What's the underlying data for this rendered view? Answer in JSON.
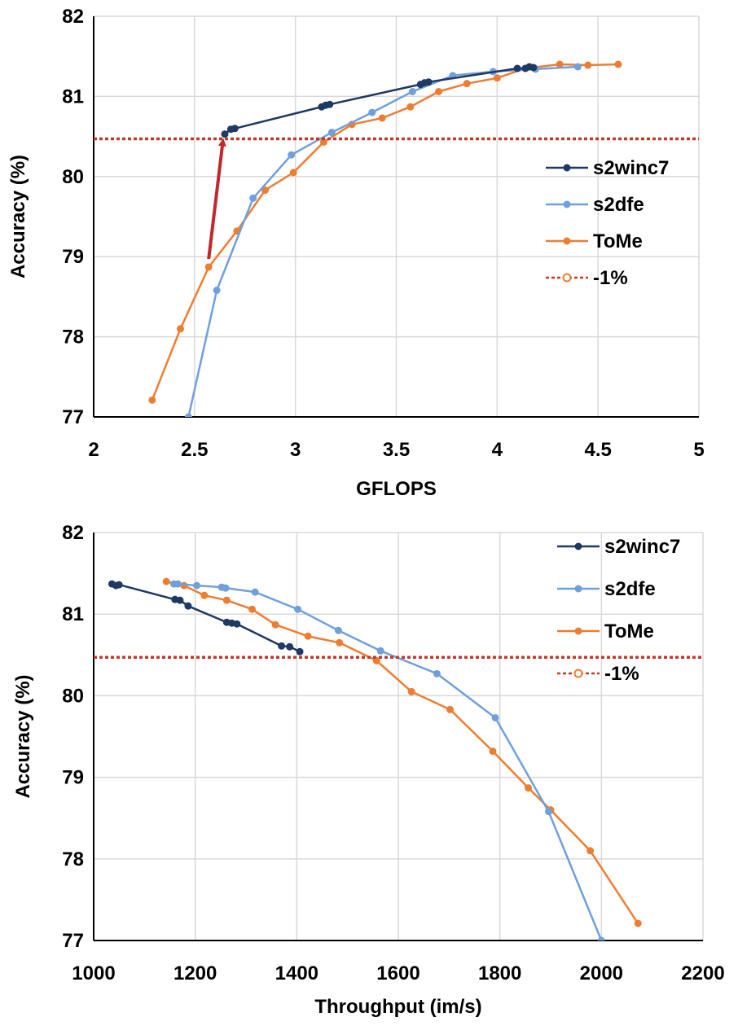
{
  "chart_data": [
    {
      "type": "line",
      "xlabel": "GFLOPS",
      "ylabel": "Accuracy (%)",
      "xlim": [
        2,
        5
      ],
      "ylim": [
        77,
        82
      ],
      "x_ticks": [
        "2",
        "2.5",
        "3",
        "3.5",
        "4",
        "4.5",
        "5"
      ],
      "y_ticks": [
        "77",
        "78",
        "79",
        "80",
        "81",
        "82"
      ],
      "grid": true,
      "legend_position": "right",
      "series": [
        {
          "name": "s2winc7",
          "color": "#1f3864",
          "kind": "line-marker",
          "x": [
            2.65,
            2.68,
            2.7,
            3.13,
            3.15,
            3.17,
            3.62,
            3.64,
            3.66,
            4.1,
            4.14,
            4.16,
            4.18
          ],
          "y": [
            80.53,
            80.59,
            80.6,
            80.87,
            80.89,
            80.9,
            81.15,
            81.17,
            81.18,
            81.35,
            81.35,
            81.37,
            81.36
          ]
        },
        {
          "name": "s2dfe",
          "color": "#6fa0dc",
          "kind": "line-marker",
          "x": [
            2.47,
            2.61,
            2.79,
            2.98,
            3.18,
            3.38,
            3.58,
            3.78,
            3.98,
            4.19,
            4.4
          ],
          "y": [
            77.0,
            78.58,
            79.73,
            80.27,
            80.55,
            80.8,
            81.06,
            81.26,
            81.31,
            81.34,
            81.37
          ]
        },
        {
          "name": "ToMe",
          "color": "#ed7d31",
          "kind": "line-marker",
          "x": [
            2.29,
            2.43,
            2.57,
            2.71,
            2.85,
            2.99,
            3.14,
            3.28,
            3.43,
            3.57,
            3.71,
            3.85,
            4.0,
            4.14,
            4.31,
            4.45,
            4.6
          ],
          "y": [
            77.21,
            78.1,
            78.87,
            79.32,
            79.83,
            80.05,
            80.43,
            80.65,
            80.73,
            80.87,
            81.06,
            81.16,
            81.23,
            81.35,
            81.4,
            81.39,
            81.4
          ]
        },
        {
          "name": "-1%",
          "color": "#c0392b",
          "kind": "dashed-reference",
          "y": 80.47
        }
      ],
      "annotations": [
        {
          "type": "arrow",
          "color": "#c0282d",
          "from": [
            2.57,
            78.97
          ],
          "to": [
            2.64,
            80.43
          ]
        }
      ]
    },
    {
      "type": "line",
      "xlabel": "Throughput (im/s)",
      "ylabel": "Accuracy (%)",
      "xlim": [
        1000,
        2200
      ],
      "ylim": [
        77,
        82
      ],
      "x_ticks": [
        "1000",
        "1200",
        "1400",
        "1600",
        "1800",
        "2000",
        "2200"
      ],
      "y_ticks": [
        "77",
        "78",
        "79",
        "80",
        "81",
        "82"
      ],
      "grid": true,
      "legend_position": "top-right",
      "series": [
        {
          "name": "s2winc7",
          "color": "#1f3864",
          "kind": "line-marker",
          "x": [
            1036,
            1044,
            1050,
            1160,
            1170,
            1186,
            1262,
            1272,
            1282,
            1370,
            1386,
            1406
          ],
          "y": [
            81.37,
            81.35,
            81.36,
            81.18,
            81.17,
            81.1,
            80.9,
            80.89,
            80.88,
            80.61,
            80.6,
            80.54
          ]
        },
        {
          "name": "s2dfe",
          "color": "#6fa0dc",
          "kind": "line-marker",
          "x": [
            1158,
            1166,
            1203,
            1252,
            1260,
            1318,
            1402,
            1482,
            1565,
            1676,
            1791,
            1896,
            2000
          ],
          "y": [
            81.37,
            81.37,
            81.35,
            81.33,
            81.32,
            81.27,
            81.06,
            80.8,
            80.55,
            80.27,
            79.73,
            78.58,
            77.0
          ]
        },
        {
          "name": "ToMe",
          "color": "#ed7d31",
          "kind": "line-marker",
          "x": [
            1143,
            1178,
            1218,
            1262,
            1312,
            1358,
            1422,
            1484,
            1557,
            1626,
            1702,
            1786,
            1856,
            1900,
            1978,
            2072
          ],
          "y": [
            81.4,
            81.35,
            81.23,
            81.17,
            81.06,
            80.87,
            80.73,
            80.65,
            80.43,
            80.05,
            79.83,
            79.32,
            78.87,
            78.6,
            78.1,
            77.21
          ]
        },
        {
          "name": "-1%",
          "color": "#c0392b",
          "kind": "dashed-reference",
          "y": 80.47
        }
      ]
    }
  ]
}
